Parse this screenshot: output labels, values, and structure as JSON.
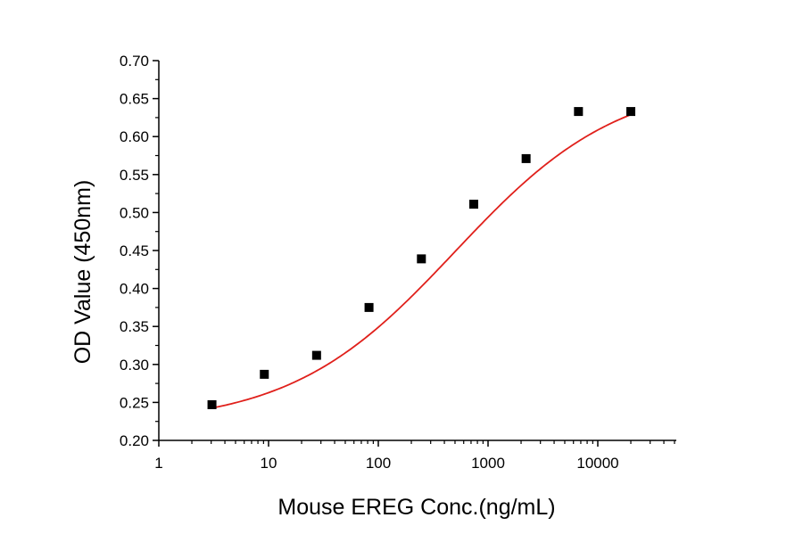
{
  "chart_data": {
    "type": "scatter",
    "title": "",
    "xlabel": "Mouse EREG Conc.(ng/mL)",
    "ylabel": "OD Value (450nm)",
    "x_scale": "log",
    "xlim": [
      1,
      50000
    ],
    "ylim": [
      0.2,
      0.7
    ],
    "x_ticks": [
      1,
      10,
      100,
      1000,
      10000
    ],
    "x_tick_labels": [
      "1",
      "10",
      "100",
      "1000",
      "10000"
    ],
    "y_ticks": [
      0.2,
      0.25,
      0.3,
      0.35,
      0.4,
      0.45,
      0.5,
      0.55,
      0.6,
      0.65,
      0.7
    ],
    "y_tick_labels": [
      "0.20",
      "0.25",
      "0.30",
      "0.35",
      "0.40",
      "0.45",
      "0.50",
      "0.55",
      "0.60",
      "0.65",
      "0.70"
    ],
    "grid": false,
    "legend": "none",
    "series": [
      {
        "type": "scatter",
        "marker": "square",
        "color": "#000000",
        "points": [
          {
            "x": 3.05,
            "y": 0.247
          },
          {
            "x": 9.15,
            "y": 0.287
          },
          {
            "x": 27.4,
            "y": 0.312
          },
          {
            "x": 82.3,
            "y": 0.375
          },
          {
            "x": 247,
            "y": 0.439
          },
          {
            "x": 741,
            "y": 0.511
          },
          {
            "x": 2222,
            "y": 0.571
          },
          {
            "x": 6667,
            "y": 0.633
          },
          {
            "x": 20000,
            "y": 0.633
          }
        ]
      },
      {
        "type": "line",
        "color": "#e0201b",
        "fit": "four-parameter logistic",
        "params": {
          "bottom": 0.22,
          "top": 0.677,
          "ec50": 500,
          "hill": 0.58
        },
        "x_range": [
          3.05,
          20000
        ]
      }
    ]
  }
}
